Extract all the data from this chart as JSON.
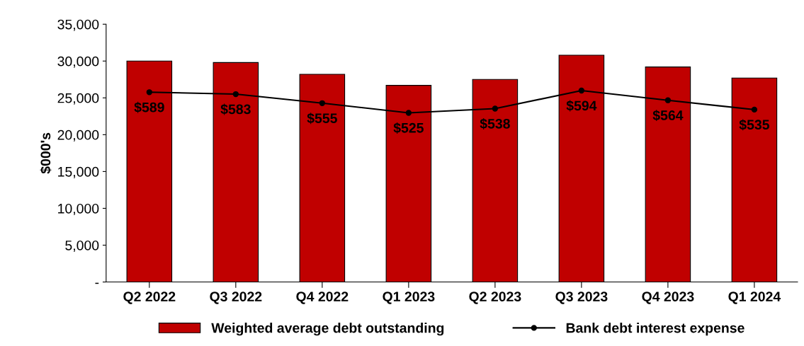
{
  "chart_data": {
    "type": "bar",
    "ylabel": "$000's",
    "categories": [
      "Q2 2022",
      "Q3 2022",
      "Q4 2022",
      "Q1 2023",
      "Q2 2023",
      "Q3 2023",
      "Q4 2023",
      "Q1 2024"
    ],
    "series": [
      {
        "name": "Weighted average debt outstanding",
        "color": "#c00000",
        "values": [
          30000,
          29800,
          28200,
          26700,
          27500,
          30800,
          29200,
          27700
        ]
      },
      {
        "name": "Bank debt interest expense",
        "type": "line",
        "axis": "y2",
        "color": "#000000",
        "marker": "circle",
        "values": [
          589,
          583,
          555,
          525,
          538,
          594,
          564,
          535
        ],
        "value_labels": [
          "$589",
          "$583",
          "$555",
          "$525",
          "$538",
          "$594",
          "$564",
          "$535"
        ]
      }
    ],
    "ylim": [
      0,
      35000
    ],
    "yticks": [
      {
        "value": 0,
        "label": "-"
      },
      {
        "value": 5000,
        "label": "5,000"
      },
      {
        "value": 10000,
        "label": "10,000"
      },
      {
        "value": 15000,
        "label": "15,000"
      },
      {
        "value": 20000,
        "label": "20,000"
      },
      {
        "value": 25000,
        "label": "25,000"
      },
      {
        "value": 30000,
        "label": "30,000"
      },
      {
        "value": 35000,
        "label": "35,000"
      }
    ],
    "y2lim": [
      0,
      800
    ],
    "grid": false,
    "legend": "bottom"
  }
}
